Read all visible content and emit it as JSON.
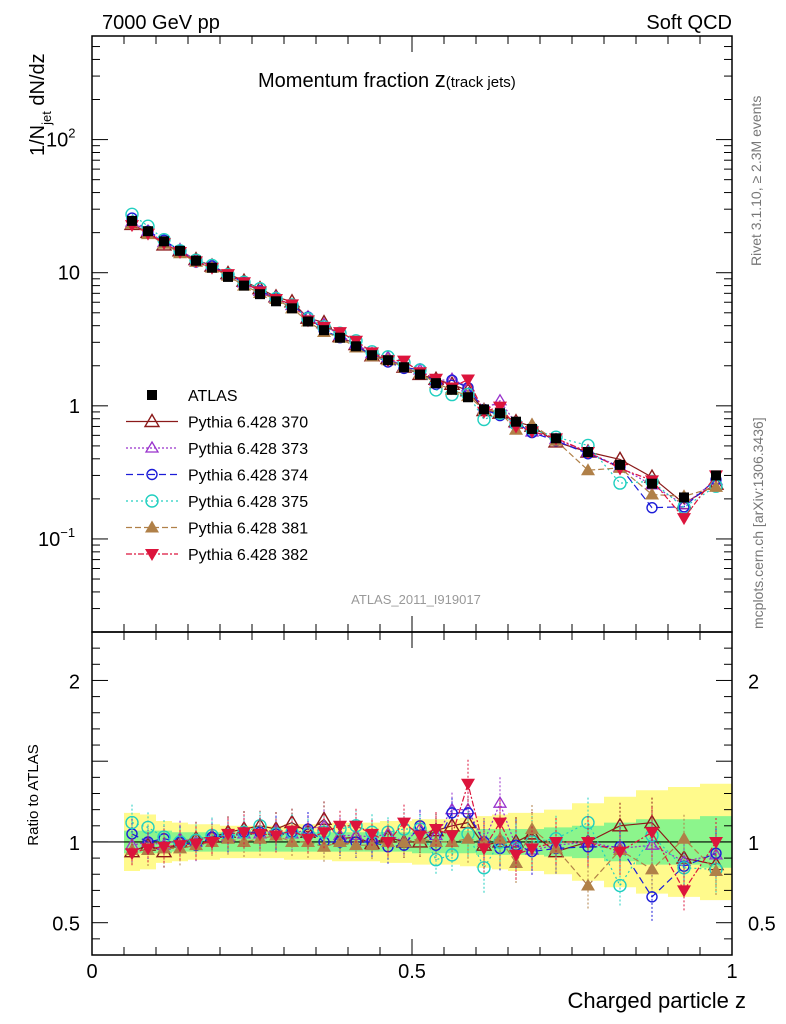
{
  "header": {
    "left": "7000 GeV pp",
    "right": "Soft QCD"
  },
  "side": {
    "rivet": "Rivet 3.1.10, ≥ 2.3M events",
    "mcplots": "mcplots.cern.ch [arXiv:1306.3436]"
  },
  "watermark": "ATLAS_2011_I919017",
  "chart_data": {
    "type": "scatter",
    "title_main": "Momentum fraction ",
    "title_z": "z",
    "title_sub": "(track jets)",
    "ylabel_main": {
      "a": "1/N",
      "b": "jet",
      "c": " dN/dz"
    },
    "ylabel_ratio": "Ratio to ATLAS",
    "xlabel": "Charged particle z",
    "xlim": [
      0,
      1
    ],
    "ylim": [
      0.02,
      600
    ],
    "ylog": true,
    "ratio_ylim": [
      0.3,
      2.3
    ],
    "x_ticks": [
      {
        "v": 0,
        "label": "0"
      },
      {
        "v": 0.5,
        "label": "0.5"
      },
      {
        "v": 1,
        "label": "1"
      }
    ],
    "y_ticks": [
      {
        "v": 0.1,
        "label": "10",
        "sup": "−1"
      },
      {
        "v": 1,
        "label": "1",
        "sup": ""
      },
      {
        "v": 10,
        "label": "10",
        "sup": ""
      },
      {
        "v": 100,
        "label": "10",
        "sup": "2"
      }
    ],
    "ratio_ticks": [
      {
        "v": 0.5,
        "label": "0.5"
      },
      {
        "v": 1,
        "label": "1"
      },
      {
        "v": 2,
        "label": "2"
      }
    ],
    "x": [
      0.0625,
      0.0875,
      0.1125,
      0.1375,
      0.1625,
      0.1875,
      0.2125,
      0.2375,
      0.2625,
      0.2875,
      0.3125,
      0.3375,
      0.3625,
      0.3875,
      0.4125,
      0.4375,
      0.4625,
      0.4875,
      0.5125,
      0.5375,
      0.5625,
      0.5875,
      0.6125,
      0.6375,
      0.6625,
      0.6875,
      0.725,
      0.775,
      0.825,
      0.875,
      0.925,
      0.975
    ],
    "atlas": [
      24.5,
      20.5,
      17.2,
      14.6,
      12.3,
      10.9,
      9.3,
      8.0,
      6.9,
      6.1,
      5.4,
      4.3,
      3.7,
      3.25,
      2.8,
      2.4,
      2.2,
      1.95,
      1.72,
      1.48,
      1.32,
      1.16,
      0.94,
      0.88,
      0.76,
      0.67,
      0.57,
      0.45,
      0.36,
      0.26,
      0.205,
      0.3
    ],
    "band_inner": [
      0.07,
      0.07,
      0.07,
      0.06,
      0.06,
      0.06,
      0.06,
      0.06,
      0.06,
      0.06,
      0.06,
      0.06,
      0.06,
      0.06,
      0.06,
      0.06,
      0.06,
      0.06,
      0.07,
      0.07,
      0.07,
      0.07,
      0.08,
      0.08,
      0.08,
      0.08,
      0.09,
      0.1,
      0.12,
      0.14,
      0.14,
      0.16
    ],
    "band_outer": [
      0.18,
      0.17,
      0.13,
      0.12,
      0.11,
      0.11,
      0.1,
      0.1,
      0.1,
      0.1,
      0.11,
      0.11,
      0.11,
      0.12,
      0.12,
      0.12,
      0.13,
      0.13,
      0.14,
      0.14,
      0.14,
      0.15,
      0.16,
      0.17,
      0.18,
      0.18,
      0.2,
      0.24,
      0.28,
      0.32,
      0.34,
      0.36
    ],
    "series": [
      {
        "name": "ATLAS",
        "style": "data",
        "color": "#000000",
        "marker": "square-filled"
      },
      {
        "name": "Pythia 6.428 370",
        "color": "#8b1a1a",
        "marker": "triangle-up-open",
        "dash": "",
        "connect": true,
        "ratio": [
          0.94,
          0.98,
          0.94,
          1.0,
          1.02,
          1.03,
          1.06,
          1.08,
          1.1,
          1.08,
          1.12,
          1.06,
          1.14,
          1.02,
          1.03,
          0.99,
          1.03,
          1.0,
          1.0,
          1.07,
          1.1,
          1.12,
          0.98,
          1.0,
          1.0,
          1.05,
          0.94,
          1.0,
          1.1,
          1.12,
          0.9,
          0.86
        ]
      },
      {
        "name": "Pythia 6.428 373",
        "color": "#9932cc",
        "marker": "triangle-up-open-small",
        "dash": "2,2",
        "connect": true,
        "ratio": [
          0.98,
          1.0,
          0.98,
          1.02,
          1.0,
          1.04,
          1.03,
          1.05,
          1.05,
          1.07,
          1.05,
          1.08,
          1.1,
          1.04,
          1.04,
          1.03,
          1.05,
          1.0,
          1.08,
          1.04,
          1.2,
          1.2,
          1.0,
          1.24,
          0.97,
          0.95,
          0.98,
          1.0,
          0.96,
          0.98,
          0.88,
          0.92
        ]
      },
      {
        "name": "Pythia 6.428 374",
        "color": "#1c1cd8",
        "marker": "circle-open",
        "dash": "7,4",
        "connect": true,
        "ratio": [
          1.05,
          1.0,
          1.02,
          1.0,
          0.98,
          1.03,
          1.04,
          1.06,
          1.06,
          1.05,
          1.06,
          1.08,
          1.0,
          1.0,
          1.0,
          1.0,
          0.97,
          0.98,
          1.1,
          0.98,
          1.18,
          1.18,
          1.0,
          0.96,
          0.98,
          0.94,
          0.96,
          0.97,
          0.97,
          0.66,
          0.85,
          0.93
        ]
      },
      {
        "name": "Pythia 6.428 375",
        "color": "#20cfc0",
        "marker": "circle-open-large",
        "dash": "2,3",
        "connect": true,
        "ratio": [
          1.12,
          1.09,
          1.03,
          1.0,
          1.01,
          1.04,
          1.04,
          1.06,
          1.1,
          1.05,
          1.06,
          1.05,
          1.06,
          1.08,
          1.1,
          1.06,
          1.06,
          1.08,
          1.08,
          0.89,
          0.92,
          1.05,
          0.84,
          1.0,
          0.96,
          1.0,
          1.02,
          1.12,
          0.73,
          1.04,
          0.84,
          0.83
        ]
      },
      {
        "name": "Pythia 6.428 381",
        "color": "#b08048",
        "marker": "triangle-up-filled",
        "dash": "6,3",
        "connect": true,
        "ratio": [
          0.95,
          0.95,
          0.96,
          0.96,
          0.98,
          1.0,
          1.02,
          1.0,
          1.02,
          1.04,
          1.0,
          1.0,
          0.97,
          1.0,
          0.98,
          0.98,
          1.0,
          1.0,
          1.02,
          1.0,
          1.0,
          1.02,
          1.0,
          1.02,
          0.87,
          1.08,
          0.96,
          0.73,
          0.95,
          0.83,
          1.02,
          0.82
        ]
      },
      {
        "name": "Pythia 6.428 382",
        "color": "#dc143c",
        "marker": "triangle-down-filled",
        "dash": "6,2,2,2",
        "connect": true,
        "ratio": [
          0.93,
          0.96,
          0.97,
          0.98,
          0.99,
          1.0,
          1.05,
          1.06,
          1.05,
          1.04,
          1.07,
          1.02,
          1.06,
          1.1,
          1.1,
          1.05,
          1.0,
          1.12,
          1.04,
          1.08,
          1.04,
          1.36,
          0.96,
          1.12,
          0.92,
          0.96,
          1.0,
          1.0,
          0.94,
          1.06,
          0.7,
          1.0
        ]
      }
    ],
    "legend_position": "lower-left"
  }
}
